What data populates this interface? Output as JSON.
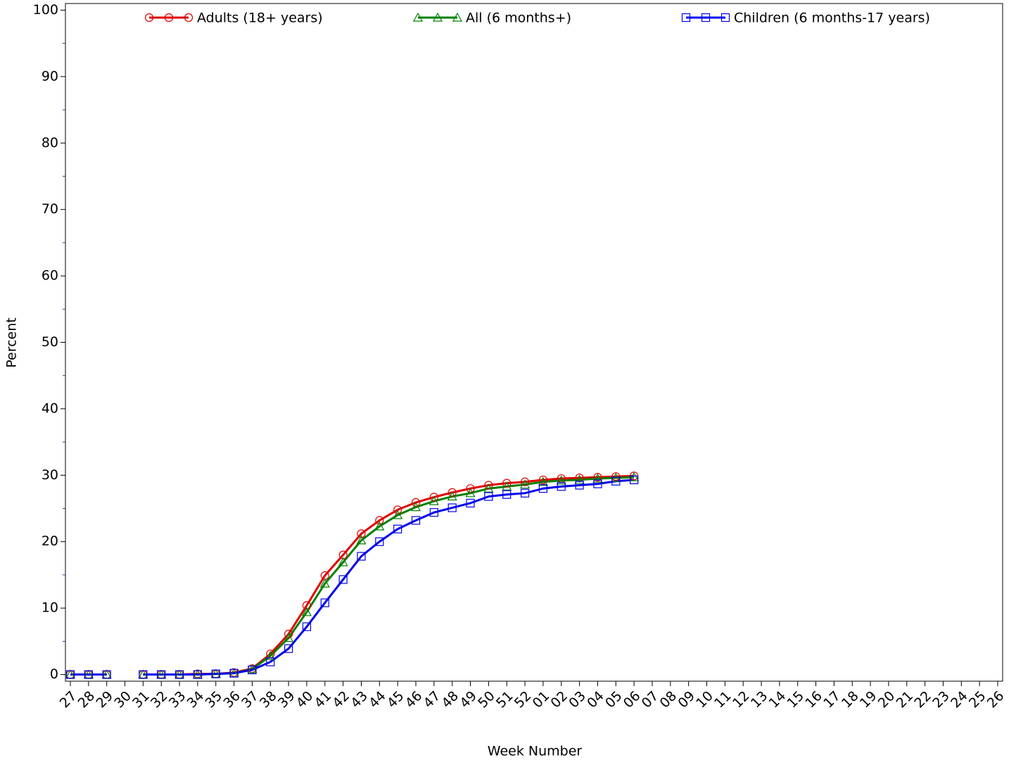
{
  "chart_data": {
    "type": "line",
    "x_label": "Week Number",
    "y_label": "Percent",
    "categories": [
      "27",
      "28",
      "29",
      "30",
      "31",
      "32",
      "33",
      "34",
      "35",
      "36",
      "37",
      "38",
      "39",
      "40",
      "41",
      "42",
      "43",
      "44",
      "45",
      "46",
      "47",
      "48",
      "49",
      "50",
      "51",
      "52",
      "01",
      "02",
      "03",
      "04",
      "05",
      "06",
      "07",
      "08",
      "09",
      "10",
      "11",
      "12",
      "13",
      "14",
      "15",
      "16",
      "17",
      "18",
      "19",
      "20",
      "21",
      "22",
      "23",
      "24",
      "25",
      "26"
    ],
    "series": [
      {
        "name": "Adults (18+ years)",
        "color": "#e00000",
        "marker": "circle",
        "values": [
          0,
          0,
          0,
          null,
          0,
          0,
          0,
          0.1,
          0.1,
          0.3,
          0.9,
          3.1,
          6.1,
          10.4,
          14.9,
          18.0,
          21.2,
          23.2,
          24.8,
          25.9,
          26.7,
          27.4,
          28.0,
          28.5,
          28.8,
          29.0,
          29.3,
          29.5,
          29.6,
          29.7,
          29.8,
          29.9,
          null,
          null,
          null,
          null,
          null,
          null,
          null,
          null,
          null,
          null,
          null,
          null,
          null,
          null,
          null,
          null,
          null,
          null,
          null,
          null
        ]
      },
      {
        "name": "All (6 months+)",
        "color": "#008000",
        "marker": "triangle",
        "values": [
          0,
          0,
          0,
          null,
          0,
          0,
          0,
          0,
          0.1,
          0.2,
          0.8,
          2.8,
          5.5,
          9.4,
          13.7,
          16.9,
          20.2,
          22.3,
          24.0,
          25.2,
          26.1,
          26.8,
          27.3,
          28.0,
          28.3,
          28.6,
          29.0,
          29.2,
          29.3,
          29.5,
          29.6,
          29.7,
          null,
          null,
          null,
          null,
          null,
          null,
          null,
          null,
          null,
          null,
          null,
          null,
          null,
          null,
          null,
          null,
          null,
          null,
          null,
          null
        ]
      },
      {
        "name": "Children (6 months-17 years)",
        "color": "#0000ee",
        "marker": "square",
        "values": [
          0,
          0,
          0,
          null,
          0,
          0,
          0,
          0,
          0.1,
          0.2,
          0.7,
          1.9,
          3.9,
          7.2,
          10.8,
          14.3,
          17.8,
          20.0,
          21.9,
          23.2,
          24.4,
          25.1,
          25.8,
          26.8,
          27.1,
          27.3,
          28.0,
          28.3,
          28.5,
          28.7,
          29.1,
          29.3,
          null,
          null,
          null,
          null,
          null,
          null,
          null,
          null,
          null,
          null,
          null,
          null,
          null,
          null,
          null,
          null,
          null,
          null,
          null,
          null
        ]
      }
    ],
    "ylim": [
      -1,
      101
    ],
    "yticks": [
      0,
      10,
      20,
      30,
      40,
      50,
      60,
      70,
      80,
      90,
      100
    ],
    "y_minor_ticks": [
      5,
      15,
      25,
      35,
      45,
      55,
      65,
      75,
      85,
      95
    ],
    "legend": "top"
  }
}
